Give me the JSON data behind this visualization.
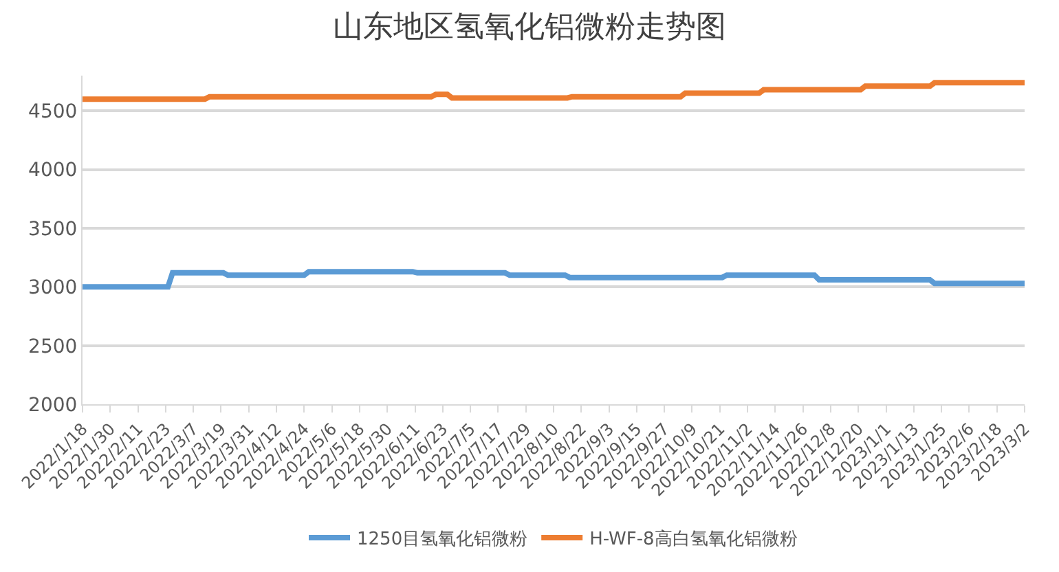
{
  "chart_data": {
    "type": "line",
    "title": "山东地区氢氧化铝微粉走势图",
    "xlim": [
      "2022-01-18",
      "2023-03-02"
    ],
    "xticks": [
      {
        "value": "2022-01-18",
        "label": "2022/1/18"
      },
      {
        "value": "2022-01-30",
        "label": "2022/1/30"
      },
      {
        "value": "2022-02-11",
        "label": "2022/2/11"
      },
      {
        "value": "2022-02-23",
        "label": "2022/2/23"
      },
      {
        "value": "2022-03-07",
        "label": "2022/3/7"
      },
      {
        "value": "2022-03-19",
        "label": "2022/3/19"
      },
      {
        "value": "2022-03-31",
        "label": "2022/3/31"
      },
      {
        "value": "2022-04-12",
        "label": "2022/4/12"
      },
      {
        "value": "2022-04-24",
        "label": "2022/4/24"
      },
      {
        "value": "2022-05-06",
        "label": "2022/5/6"
      },
      {
        "value": "2022-05-18",
        "label": "2022/5/18"
      },
      {
        "value": "2022-05-30",
        "label": "2022/5/30"
      },
      {
        "value": "2022-06-11",
        "label": "2022/6/11"
      },
      {
        "value": "2022-06-23",
        "label": "2022/6/23"
      },
      {
        "value": "2022-07-05",
        "label": "2022/7/5"
      },
      {
        "value": "2022-07-17",
        "label": "2022/7/17"
      },
      {
        "value": "2022-07-29",
        "label": "2022/7/29"
      },
      {
        "value": "2022-08-10",
        "label": "2022/8/10"
      },
      {
        "value": "2022-08-22",
        "label": "2022/8/22"
      },
      {
        "value": "2022-09-03",
        "label": "2022/9/3"
      },
      {
        "value": "2022-09-15",
        "label": "2022/9/15"
      },
      {
        "value": "2022-09-27",
        "label": "2022/9/27"
      },
      {
        "value": "2022-10-09",
        "label": "2022/10/9"
      },
      {
        "value": "2022-10-21",
        "label": "2022/10/21"
      },
      {
        "value": "2022-11-02",
        "label": "2022/11/2"
      },
      {
        "value": "2022-11-14",
        "label": "2022/11/14"
      },
      {
        "value": "2022-11-26",
        "label": "2022/11/26"
      },
      {
        "value": "2022-12-08",
        "label": "2022/12/8"
      },
      {
        "value": "2022-12-20",
        "label": "2022/12/20"
      },
      {
        "value": "2023-01-01",
        "label": "2023/1/1"
      },
      {
        "value": "2023-01-13",
        "label": "2023/1/13"
      },
      {
        "value": "2023-01-25",
        "label": "2023/1/25"
      },
      {
        "value": "2023-02-06",
        "label": "2023/2/6"
      },
      {
        "value": "2023-02-18",
        "label": "2023/2/18"
      },
      {
        "value": "2023-03-02",
        "label": "2023/3/2"
      }
    ],
    "ylim": [
      2000,
      4800
    ],
    "yticks": [
      2000,
      2500,
      3000,
      3500,
      4000,
      4500
    ],
    "grid": "y",
    "legend": "bottom",
    "marker": "none",
    "line_style": "solid",
    "series": [
      {
        "name": "1250目氢氧化铝微粉",
        "color": "#5b9bd5",
        "x": [
          "2022-01-18",
          "2022-02-24",
          "2022-02-26",
          "2022-03-20",
          "2022-03-22",
          "2022-04-24",
          "2022-04-26",
          "2022-06-10",
          "2022-06-12",
          "2022-07-20",
          "2022-07-22",
          "2022-08-15",
          "2022-08-17",
          "2022-10-22",
          "2022-10-24",
          "2022-12-01",
          "2022-12-03",
          "2023-01-20",
          "2023-01-22",
          "2023-03-02"
        ],
        "values": [
          3000,
          3000,
          3120,
          3120,
          3100,
          3100,
          3130,
          3130,
          3120,
          3120,
          3100,
          3100,
          3080,
          3080,
          3100,
          3100,
          3060,
          3060,
          3030,
          3030
        ]
      },
      {
        "name": "H-WF-8高白氢氧化铝微粉",
        "color": "#ed7d31",
        "x": [
          "2022-01-18",
          "2022-03-12",
          "2022-03-14",
          "2022-06-18",
          "2022-06-20",
          "2022-06-25",
          "2022-06-27",
          "2022-08-16",
          "2022-08-18",
          "2022-10-04",
          "2022-10-06",
          "2022-11-07",
          "2022-11-09",
          "2022-12-21",
          "2022-12-23",
          "2023-01-20",
          "2023-01-22",
          "2023-03-02"
        ],
        "values": [
          4600,
          4600,
          4620,
          4620,
          4640,
          4640,
          4610,
          4610,
          4620,
          4620,
          4650,
          4650,
          4680,
          4680,
          4710,
          4710,
          4740,
          4740
        ]
      }
    ]
  }
}
